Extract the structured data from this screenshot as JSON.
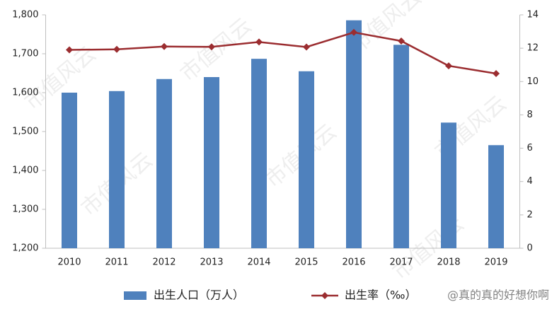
{
  "chart_data": {
    "type": "bar-line",
    "categories": [
      "2010",
      "2011",
      "2012",
      "2013",
      "2014",
      "2015",
      "2016",
      "2017",
      "2018",
      "2019"
    ],
    "series": [
      {
        "name": "出生人口（万人）",
        "type": "bar",
        "color": "#4f81bd",
        "values": [
          1600,
          1604,
          1635,
          1640,
          1687,
          1655,
          1786,
          1723,
          1523,
          1465
        ]
      },
      {
        "name": "出生率（‰）",
        "type": "line",
        "axis": "y2",
        "color": "#9b2d30",
        "values": [
          11.9,
          11.93,
          12.1,
          12.08,
          12.37,
          12.07,
          12.95,
          12.43,
          10.94,
          10.48
        ]
      }
    ],
    "ylim": [
      1200,
      1800
    ],
    "yticks": [
      {
        "value": 1200,
        "label": "1,200"
      },
      {
        "value": 1300,
        "label": "1,300"
      },
      {
        "value": 1400,
        "label": "1,400"
      },
      {
        "value": 1500,
        "label": "1,500"
      },
      {
        "value": 1600,
        "label": "1,600"
      },
      {
        "value": 1700,
        "label": "1,700"
      },
      {
        "value": 1800,
        "label": "1,800"
      }
    ],
    "y2lim": [
      0,
      14
    ],
    "y2ticks": [
      0,
      2,
      4,
      6,
      8,
      10,
      12,
      14
    ],
    "legend": "bottom",
    "watermark": "市值风云",
    "user_watermark": "@真的真的好想你啊"
  }
}
